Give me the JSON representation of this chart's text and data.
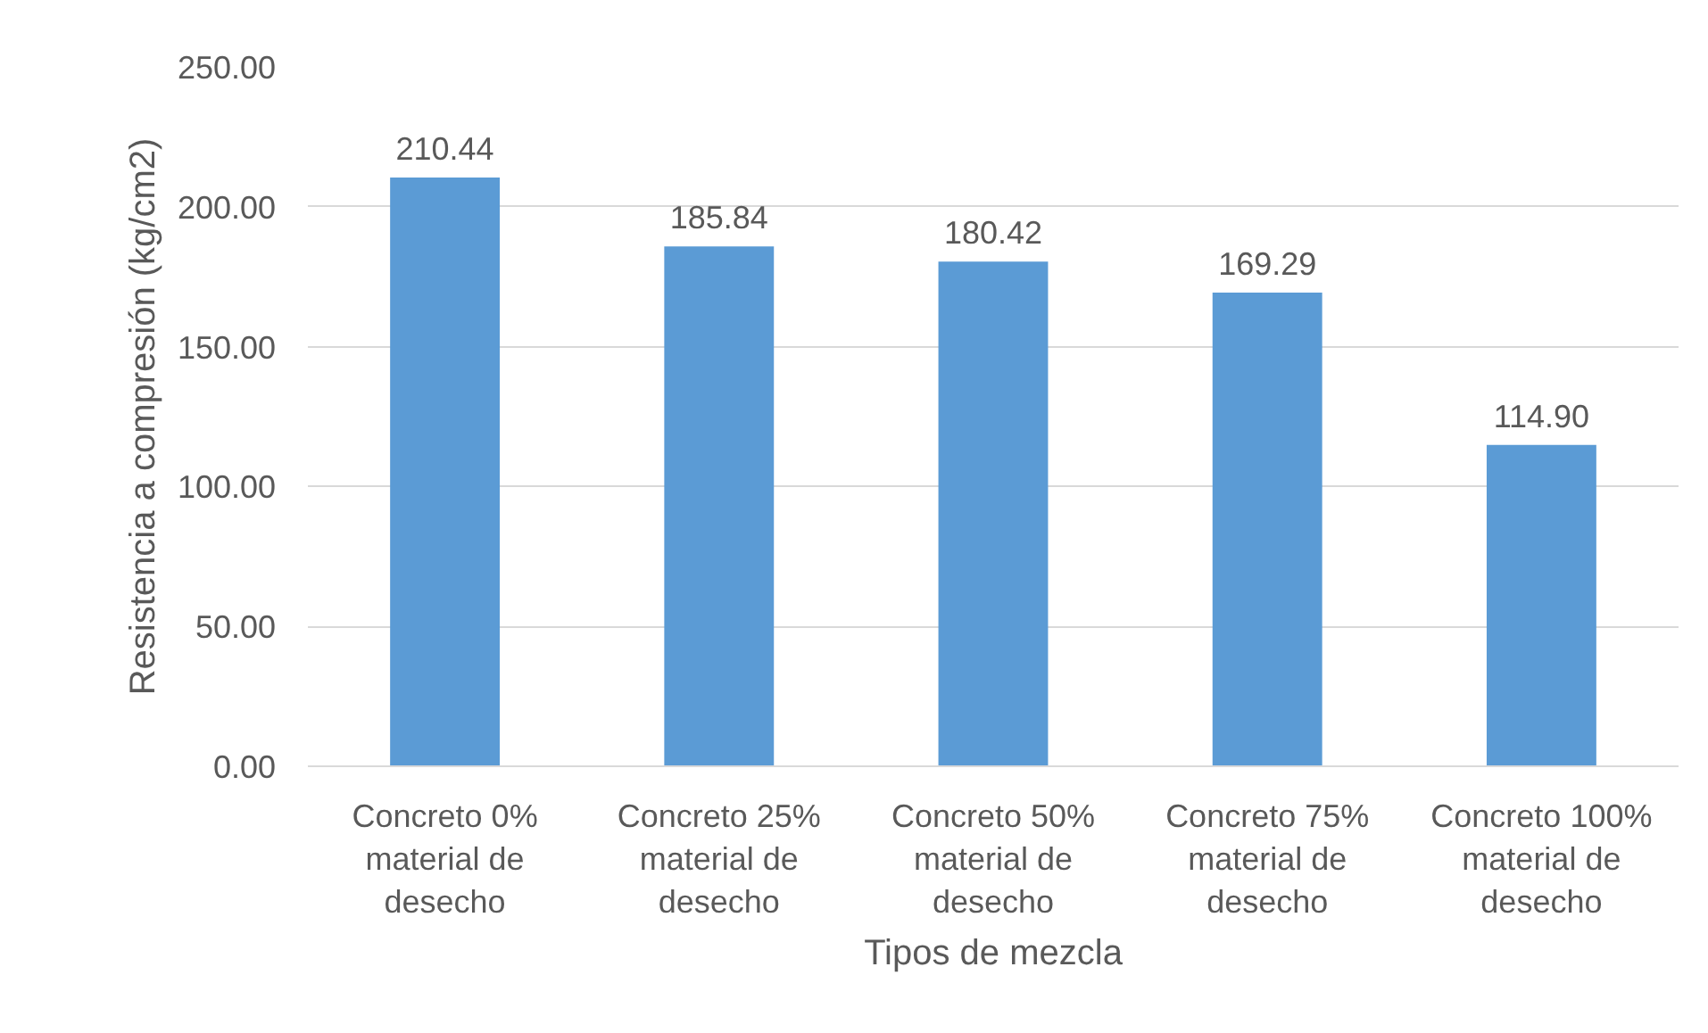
{
  "chart_data": {
    "type": "bar",
    "xlabel": "Tipos de mezcla",
    "ylabel": "Resistencia a compresión (kg/cm2)",
    "categories": [
      "Concreto 0% material de desecho",
      "Concreto 25% material de desecho",
      "Concreto 50% material de desecho",
      "Concreto 75% material de desecho",
      "Concreto 100% material de desecho"
    ],
    "values": [
      210.44,
      185.84,
      180.42,
      169.29,
      114.9
    ],
    "value_labels": [
      "210.44",
      "185.84",
      "180.42",
      "169.29",
      "114.90"
    ],
    "color": "#5b9bd5",
    "ylim": [
      0,
      250
    ],
    "yticks": [
      {
        "value": 0,
        "label": "0.00"
      },
      {
        "value": 50,
        "label": "50.00"
      },
      {
        "value": 100,
        "label": "100.00"
      },
      {
        "value": 150,
        "label": "150.00"
      },
      {
        "value": 200,
        "label": "200.00"
      },
      {
        "value": 250,
        "label": "250.00"
      }
    ],
    "grid": "y"
  }
}
